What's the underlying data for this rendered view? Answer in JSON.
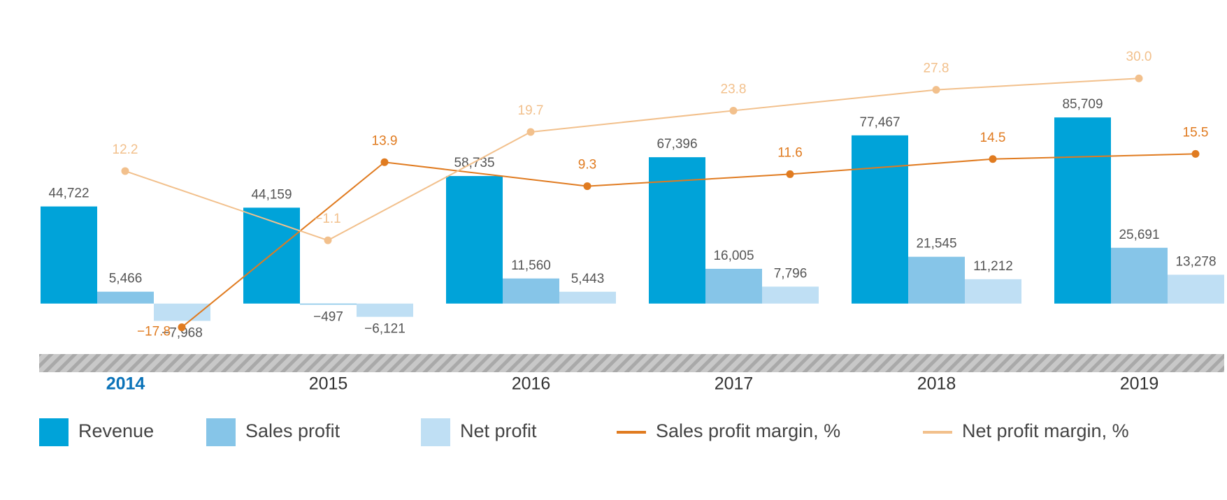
{
  "chart_data": {
    "type": "bar",
    "categories": [
      "2014",
      "2015",
      "2016",
      "2017",
      "2018",
      "2019"
    ],
    "ylim": [
      -21000,
      120500
    ],
    "y2lim": [
      -22,
      37
    ],
    "series": [
      {
        "name": "Revenue",
        "color": "#00a3d9",
        "values": [
          44722,
          44159,
          58735,
          67396,
          77467,
          85709
        ],
        "value_labels": [
          "44,722",
          "44,159",
          "58,735",
          "67,396",
          "77,467",
          "85,709"
        ]
      },
      {
        "name": "Sales profit",
        "color": "#86c5e8",
        "values": [
          5466,
          -497,
          11560,
          16005,
          21545,
          25691
        ],
        "value_labels": [
          "5,466",
          "−497",
          "11,560",
          "16,005",
          "21,545",
          "25,691"
        ]
      },
      {
        "name": "Net profit",
        "color": "#bfdff4",
        "values": [
          -7968,
          -6121,
          5443,
          7796,
          11212,
          13278
        ],
        "value_labels": [
          "−7,968",
          "−6,121",
          "5,443",
          "7,796",
          "11,212",
          "13,278"
        ]
      },
      {
        "name": "Sales profit margin, %",
        "type": "line",
        "axis": "y2",
        "color": "#e07b20",
        "values": [
          -17.8,
          13.9,
          9.3,
          11.6,
          14.5,
          15.5
        ],
        "value_labels": [
          "−17.8",
          "13.9",
          "9.3",
          "11.6",
          "14.5",
          "15.5"
        ]
      },
      {
        "name": "Net profit margin, %",
        "type": "line",
        "axis": "y2",
        "color": "#f2c08c",
        "values": [
          12.2,
          -1.1,
          19.7,
          23.8,
          27.8,
          30
        ],
        "value_labels": [
          "12.2",
          "−1.1",
          "19.7",
          "23.8",
          "27.8",
          "30.0"
        ]
      }
    ]
  }
}
